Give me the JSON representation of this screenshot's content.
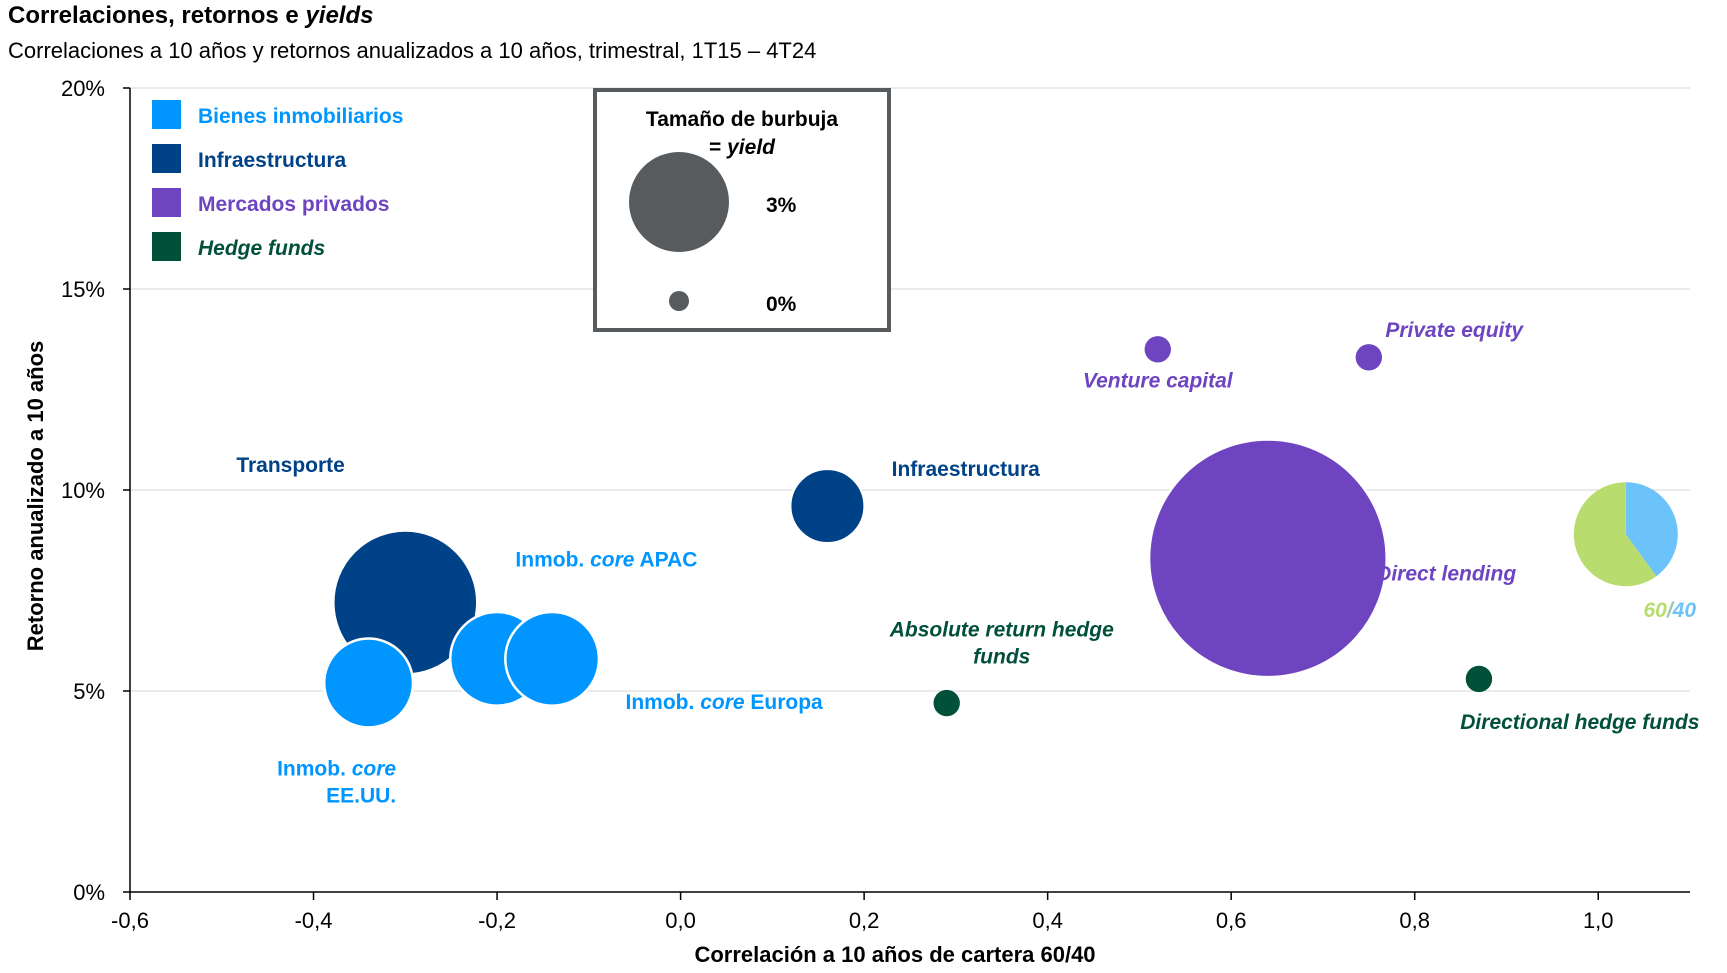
{
  "chart_data": {
    "type": "bubble",
    "title_main": "Correlaciones, retornos e ",
    "title_em": "yields",
    "subtitle": "Correlaciones a 10 años y retornos anualizados a 10 años, trimestral, 1T15 – 4T24",
    "xlabel": "Correlación a 10 años de cartera 60/40",
    "ylabel": "Retorno anualizado a 10 años",
    "xlim": [
      -0.6,
      1.1
    ],
    "ylim": [
      0,
      20
    ],
    "x_ticks": [
      {
        "v": -0.6,
        "label": "-0,6"
      },
      {
        "v": -0.4,
        "label": "-0,4"
      },
      {
        "v": -0.2,
        "label": "-0,2"
      },
      {
        "v": 0.0,
        "label": "0,0"
      },
      {
        "v": 0.2,
        "label": "0,2"
      },
      {
        "v": 0.4,
        "label": "0,4"
      },
      {
        "v": 0.6,
        "label": "0,6"
      },
      {
        "v": 0.8,
        "label": "0,8"
      },
      {
        "v": 1.0,
        "label": "1,0"
      }
    ],
    "y_ticks": [
      {
        "v": 0,
        "label": "0%"
      },
      {
        "v": 5,
        "label": "5%"
      },
      {
        "v": 10,
        "label": "10%"
      },
      {
        "v": 15,
        "label": "15%"
      },
      {
        "v": 20,
        "label": "20%"
      }
    ],
    "grid": true,
    "colors": {
      "real_estate": "#0095ff",
      "infrastructure": "#004287",
      "private_markets": "#6e44c1",
      "hedge_funds": "#00503a",
      "legend_bubble": "#575b5e",
      "sixty": "#b8dd6e",
      "forty": "#6cc3fa"
    },
    "legend": [
      {
        "label": "Bienes inmobiliarios",
        "key": "real_estate",
        "italic": false
      },
      {
        "label": "Infraestructura",
        "key": "infrastructure",
        "italic": false
      },
      {
        "label": "Mercados privados",
        "key": "private_markets",
        "italic": false
      },
      {
        "label": "Hedge funds",
        "key": "hedge_funds",
        "italic": true
      }
    ],
    "size_legend": {
      "title_line1": "Tamaño de burbuja",
      "title_line2_prefix": "= ",
      "title_line2_em": "yield",
      "big_label": "3%",
      "small_label": "0%",
      "big_yield": 3,
      "small_yield": 0
    },
    "points": [
      {
        "name": "Transporte",
        "x": -0.3,
        "y": 7.2,
        "yield": 5.0,
        "group": "infrastructure"
      },
      {
        "name": "Inmob. core EE.UU.",
        "x": -0.34,
        "y": 5.2,
        "yield": 2.7,
        "group": "real_estate"
      },
      {
        "name": "Inmob. core APAC",
        "x": -0.2,
        "y": 5.8,
        "yield": 2.9,
        "group": "real_estate"
      },
      {
        "name": "Inmob. core Europa",
        "x": -0.14,
        "y": 5.8,
        "yield": 2.9,
        "group": "real_estate"
      },
      {
        "name": "Infraestructura",
        "x": 0.16,
        "y": 9.6,
        "yield": 2.1,
        "group": "infrastructure"
      },
      {
        "name": "Absolute return hedge funds",
        "x": 0.29,
        "y": 4.7,
        "yield": 0.1,
        "group": "hedge_funds"
      },
      {
        "name": "Venture capital",
        "x": 0.52,
        "y": 13.5,
        "yield": 0.1,
        "group": "private_markets"
      },
      {
        "name": "Private equity",
        "x": 0.75,
        "y": 13.3,
        "yield": 0.1,
        "group": "private_markets"
      },
      {
        "name": "Direct lending",
        "x": 0.64,
        "y": 8.3,
        "yield": 8.9,
        "group": "private_markets"
      },
      {
        "name": "Directional hedge funds",
        "x": 0.87,
        "y": 5.3,
        "yield": 0.1,
        "group": "hedge_funds"
      }
    ],
    "portfolio_6040": {
      "x": 1.03,
      "y": 8.9,
      "share_60": 60,
      "share_40": 40,
      "label_60": "60",
      "label_sep": "/",
      "label_40": "40"
    },
    "point_labels": [
      {
        "lines": [
          {
            "parts": [
              {
                "t": "Transporte"
              }
            ]
          }
        ],
        "group": "infrastructure",
        "align": "middle",
        "dx": -0.125,
        "dy": 3.25
      },
      {
        "lines": [
          {
            "parts": [
              {
                "t": "Inmob. "
              },
              {
                "t": "core",
                "em": true
              }
            ]
          },
          {
            "parts": [
              {
                "t": "EE.UU."
              }
            ]
          }
        ],
        "group": "real_estate",
        "align": "end",
        "dx": 0.03,
        "dy": -2.3
      },
      {
        "lines": [
          {
            "parts": [
              {
                "t": "Inmob. "
              },
              {
                "t": "core",
                "em": true
              },
              {
                "t": " APAC"
              }
            ]
          }
        ],
        "group": "real_estate",
        "align": "start",
        "dx": 0.02,
        "dy": 2.3
      },
      {
        "lines": [
          {
            "parts": [
              {
                "t": "Inmob. "
              },
              {
                "t": "core",
                "em": true
              },
              {
                "t": " Europa"
              }
            ]
          }
        ],
        "group": "real_estate",
        "align": "start",
        "dx": 0.08,
        "dy": -1.25
      },
      {
        "lines": [
          {
            "parts": [
              {
                "t": "Infraestructura"
              }
            ]
          }
        ],
        "group": "infrastructure",
        "align": "start",
        "dx": 0.07,
        "dy": 0.75
      },
      {
        "lines": [
          {
            "parts": [
              {
                "t": "Absolute return hedge",
                "em": true
              }
            ]
          },
          {
            "parts": [
              {
                "t": "funds",
                "em": true
              }
            ]
          }
        ],
        "group": "hedge_funds",
        "align": "middle",
        "dx": 0.06,
        "dy": 1.65
      },
      {
        "lines": [
          {
            "parts": [
              {
                "t": "Venture capital",
                "em": true
              }
            ]
          }
        ],
        "group": "private_markets",
        "align": "middle",
        "dx": 0.0,
        "dy": -0.95
      },
      {
        "lines": [
          {
            "parts": [
              {
                "t": "Private equity",
                "em": true
              }
            ]
          }
        ],
        "group": "private_markets",
        "align": "start",
        "dx": 0.018,
        "dy": 0.5
      },
      {
        "lines": [
          {
            "parts": [
              {
                "t": "Direct lending",
                "em": true
              }
            ]
          }
        ],
        "group": "private_markets",
        "align": "start",
        "dx": 0.118,
        "dy": -0.55
      },
      {
        "lines": [
          {
            "parts": [
              {
                "t": "Directional hedge funds",
                "em": true
              }
            ]
          }
        ],
        "group": "hedge_funds",
        "align": "middle",
        "dx": 0.11,
        "dy": -1.25
      }
    ]
  }
}
